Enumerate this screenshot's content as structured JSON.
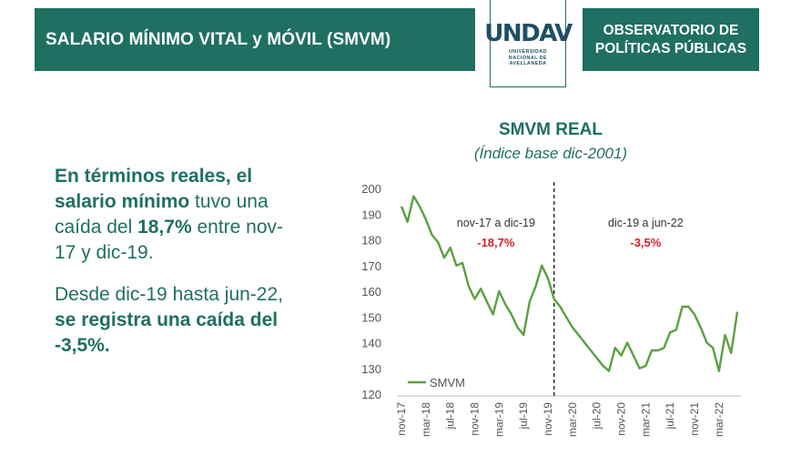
{
  "header": {
    "title": "SALARIO MÍNIMO VITAL y MÓVIL (SMVM)",
    "org_line1": "OBSERVATORIO DE",
    "org_line2": "POLÍTICAS PÚBLICAS",
    "logo_text": "UNDAV",
    "logo_sub1": "UNIVERSIDAD",
    "logo_sub2": "NACIONAL DE",
    "logo_sub3": "AVELLANEDA"
  },
  "left_text": {
    "p1_a": "En términos reales, el",
    "p1_b": "salario mínimo",
    "p1_c": " tuvo una caída del ",
    "p1_d": "18,7%",
    "p1_e": " entre nov-17 y dic-19.",
    "p2_a": "Desde dic-19 hasta jun-22, ",
    "p2_b": "se registra una caída del -3,5%."
  },
  "colors": {
    "brand": "#1f6f63",
    "line": "#5aa040",
    "annotation_value": "#d9202a"
  },
  "chart_data": {
    "type": "line",
    "title": "SMVM REAL",
    "subtitle": "(Índice base dic-2001)",
    "ylim": [
      120,
      200
    ],
    "yticks": [
      120,
      130,
      140,
      150,
      160,
      170,
      180,
      190,
      200
    ],
    "xticks": [
      "nov-17",
      "mar-18",
      "jul-18",
      "nov-18",
      "mar-19",
      "jul-19",
      "nov-19",
      "mar-20",
      "jul-20",
      "nov-20",
      "mar-21",
      "jul-21",
      "nov-21",
      "mar-22"
    ],
    "x_start": "nov-17",
    "x_end": "jun-22",
    "series": [
      {
        "name": "SMVM",
        "x": [
          "nov-17",
          "dic-17",
          "ene-18",
          "feb-18",
          "mar-18",
          "abr-18",
          "may-18",
          "jun-18",
          "jul-18",
          "ago-18",
          "sep-18",
          "oct-18",
          "nov-18",
          "dic-18",
          "ene-19",
          "feb-19",
          "mar-19",
          "abr-19",
          "may-19",
          "jun-19",
          "jul-19",
          "ago-19",
          "sep-19",
          "oct-19",
          "nov-19",
          "dic-19",
          "ene-20",
          "feb-20",
          "mar-20",
          "abr-20",
          "may-20",
          "jun-20",
          "jul-20",
          "ago-20",
          "sep-20",
          "oct-20",
          "nov-20",
          "dic-20",
          "ene-21",
          "feb-21",
          "mar-21",
          "abr-21",
          "may-21",
          "jun-21",
          "jul-21",
          "ago-21",
          "sep-21",
          "oct-21",
          "nov-21",
          "dic-21",
          "ene-22",
          "feb-22",
          "mar-22",
          "abr-22",
          "may-22",
          "jun-22"
        ],
        "values": [
          193,
          187,
          197,
          193,
          188,
          182,
          179,
          173,
          177,
          170,
          171,
          162,
          157,
          161,
          156,
          151,
          160,
          155,
          151,
          146,
          143,
          156,
          162,
          170,
          165,
          157,
          154,
          150,
          146,
          143,
          140,
          137,
          134,
          131,
          129,
          138,
          135,
          140,
          135,
          130,
          131,
          137,
          137,
          138,
          144,
          145,
          154,
          154,
          151,
          146,
          140,
          138,
          129,
          143,
          136,
          152
        ]
      }
    ],
    "divider_at": "dic-19",
    "annotations": [
      {
        "label": "nov-17 a dic-19",
        "value": "-18,7%"
      },
      {
        "label": "dic-19 a jun-22",
        "value": "-3,5%"
      }
    ],
    "legend": "bottom-left inside",
    "grid": false
  }
}
